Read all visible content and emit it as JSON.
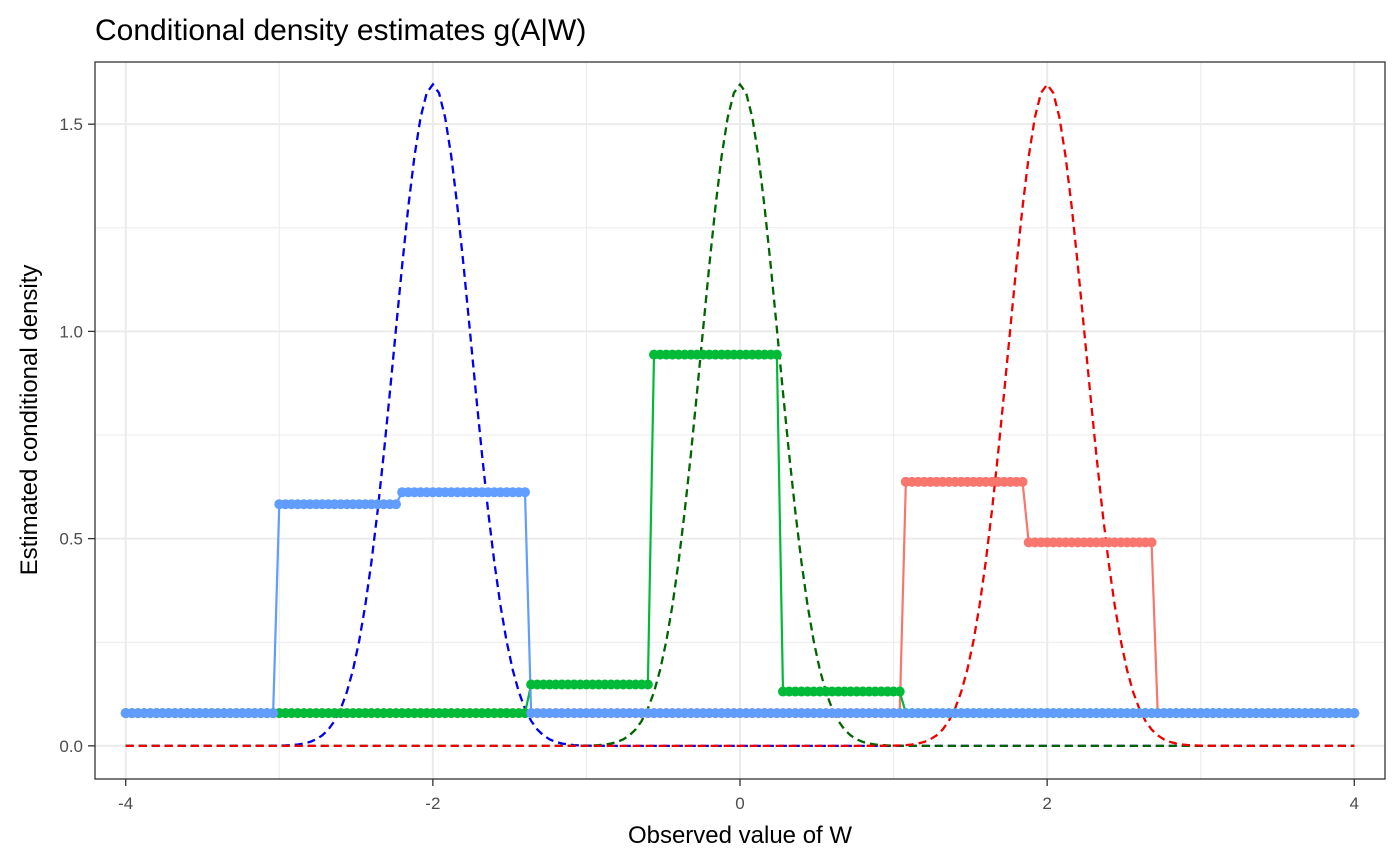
{
  "chart_data": {
    "type": "line",
    "title": "Conditional density estimates g(A|W)",
    "xlabel": "Observed value of W",
    "ylabel": "Estimated conditional density",
    "xlim": [
      -4.2,
      4.2
    ],
    "ylim": [
      -0.08,
      1.65
    ],
    "x_ticks": [
      -4,
      -2,
      0,
      2,
      4
    ],
    "x_tick_labels": [
      "-4",
      "-2",
      "0",
      "2",
      "4"
    ],
    "y_ticks": [
      0.0,
      0.5,
      1.0,
      1.5
    ],
    "y_tick_labels": [
      "0.0",
      "0.5",
      "1.0",
      "1.5"
    ],
    "x_minor_ticks": [
      -3,
      -1,
      1,
      3
    ],
    "y_minor_ticks": [
      0.25,
      0.75,
      1.25
    ],
    "grid": true,
    "legend": "none",
    "estimate_series": [
      {
        "color": "#F8766D",
        "line_style": "solid",
        "markers": true,
        "steps": [
          {
            "x_from": -4.0,
            "x_to": 1.07,
            "value": 0.079
          },
          {
            "x_from": 1.07,
            "x_to": 1.88,
            "value": 0.637
          },
          {
            "x_from": 1.88,
            "x_to": 2.7,
            "value": 0.491
          },
          {
            "x_from": 2.7,
            "x_to": 4.0,
            "value": 0.079
          }
        ]
      },
      {
        "color": "#00BA38",
        "line_style": "solid",
        "markers": true,
        "steps": [
          {
            "x_from": -4.0,
            "x_to": -1.37,
            "value": 0.079
          },
          {
            "x_from": -1.37,
            "x_to": -0.58,
            "value": 0.148
          },
          {
            "x_from": -0.58,
            "x_to": 0.27,
            "value": 0.944
          },
          {
            "x_from": 0.27,
            "x_to": 1.07,
            "value": 0.131
          },
          {
            "x_from": 1.07,
            "x_to": 4.0,
            "value": 0.079
          }
        ]
      },
      {
        "color": "#619CFF",
        "line_style": "solid",
        "markers": true,
        "steps": [
          {
            "x_from": -4.0,
            "x_to": -3.03,
            "value": 0.079
          },
          {
            "x_from": -3.03,
            "x_to": -2.2,
            "value": 0.583
          },
          {
            "x_from": -2.2,
            "x_to": -1.38,
            "value": 0.612
          },
          {
            "x_from": -1.38,
            "x_to": 4.0,
            "value": 0.079
          }
        ]
      }
    ],
    "true_density_series": [
      {
        "color": "#0000EE",
        "line_style": "dashed",
        "mean": -2,
        "sd": 0.25,
        "x_range": [
          -4,
          4
        ]
      },
      {
        "color": "#006400",
        "line_style": "dashed",
        "mean": 0,
        "sd": 0.25,
        "x_range": [
          -4,
          4
        ]
      },
      {
        "color": "#EE0000",
        "line_style": "dashed",
        "mean": 2,
        "sd": 0.25,
        "x_range": [
          -4,
          4
        ]
      }
    ]
  }
}
